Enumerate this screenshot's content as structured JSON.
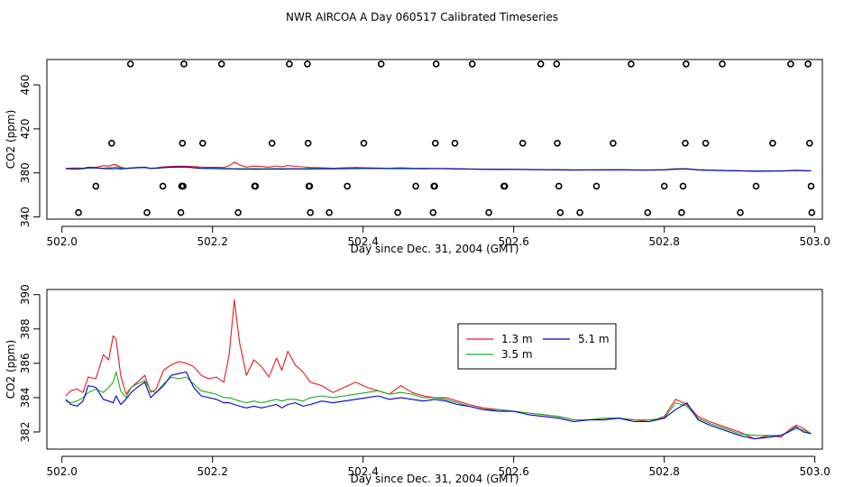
{
  "title": "NWR AIRCOA A  Day 060517  Calibrated Timeseries",
  "chart_data": [
    {
      "type": "scatter",
      "ylabel": "CO2 (ppm)",
      "xlabel": "Day since Dec. 31, 2004 (GMT)",
      "xlim": [
        501.98,
        503.01
      ],
      "ylim": [
        338,
        483
      ],
      "xticks": [
        502.0,
        502.2,
        502.4,
        502.6,
        502.8,
        503.0
      ],
      "xtick_labels": [
        "502.0",
        "502.2",
        "502.4",
        "502.6",
        "502.8",
        "503.0"
      ],
      "yticks": [
        340,
        380,
        420,
        460
      ],
      "ytick_labels": [
        "340",
        "380",
        "420",
        "460"
      ],
      "calibration_points": [
        {
          "x": 502.091,
          "y": 479
        },
        {
          "x": 502.162,
          "y": 479
        },
        {
          "x": 502.212,
          "y": 479
        },
        {
          "x": 502.302,
          "y": 479
        },
        {
          "x": 502.326,
          "y": 479
        },
        {
          "x": 502.424,
          "y": 479
        },
        {
          "x": 502.497,
          "y": 479
        },
        {
          "x": 502.545,
          "y": 479
        },
        {
          "x": 502.636,
          "y": 479
        },
        {
          "x": 502.657,
          "y": 479
        },
        {
          "x": 502.756,
          "y": 479
        },
        {
          "x": 502.829,
          "y": 479
        },
        {
          "x": 502.877,
          "y": 479
        },
        {
          "x": 502.968,
          "y": 479
        },
        {
          "x": 502.991,
          "y": 479
        },
        {
          "x": 502.066,
          "y": 407
        },
        {
          "x": 502.16,
          "y": 407
        },
        {
          "x": 502.187,
          "y": 407
        },
        {
          "x": 502.279,
          "y": 407
        },
        {
          "x": 502.327,
          "y": 407
        },
        {
          "x": 502.401,
          "y": 407
        },
        {
          "x": 502.496,
          "y": 407
        },
        {
          "x": 502.522,
          "y": 407
        },
        {
          "x": 502.612,
          "y": 407
        },
        {
          "x": 502.658,
          "y": 407
        },
        {
          "x": 502.732,
          "y": 407
        },
        {
          "x": 502.828,
          "y": 407
        },
        {
          "x": 502.855,
          "y": 407
        },
        {
          "x": 502.944,
          "y": 407
        },
        {
          "x": 502.993,
          "y": 407
        },
        {
          "x": 502.045,
          "y": 368
        },
        {
          "x": 502.134,
          "y": 368
        },
        {
          "x": 502.159,
          "y": 368
        },
        {
          "x": 502.161,
          "y": 368
        },
        {
          "x": 502.256,
          "y": 368
        },
        {
          "x": 502.257,
          "y": 368
        },
        {
          "x": 502.328,
          "y": 368
        },
        {
          "x": 502.329,
          "y": 368
        },
        {
          "x": 502.379,
          "y": 368
        },
        {
          "x": 502.47,
          "y": 368
        },
        {
          "x": 502.494,
          "y": 368
        },
        {
          "x": 502.495,
          "y": 368
        },
        {
          "x": 502.587,
          "y": 368
        },
        {
          "x": 502.588,
          "y": 368
        },
        {
          "x": 502.66,
          "y": 368
        },
        {
          "x": 502.71,
          "y": 368
        },
        {
          "x": 502.8,
          "y": 368
        },
        {
          "x": 502.825,
          "y": 368
        },
        {
          "x": 502.922,
          "y": 368
        },
        {
          "x": 502.995,
          "y": 368
        },
        {
          "x": 502.022,
          "y": 344
        },
        {
          "x": 502.113,
          "y": 344
        },
        {
          "x": 502.158,
          "y": 344
        },
        {
          "x": 502.234,
          "y": 344
        },
        {
          "x": 502.33,
          "y": 344
        },
        {
          "x": 502.355,
          "y": 344
        },
        {
          "x": 502.446,
          "y": 344
        },
        {
          "x": 502.493,
          "y": 344
        },
        {
          "x": 502.567,
          "y": 344
        },
        {
          "x": 502.662,
          "y": 344
        },
        {
          "x": 502.688,
          "y": 344
        },
        {
          "x": 502.778,
          "y": 344
        },
        {
          "x": 502.823,
          "y": 344
        },
        {
          "x": 502.901,
          "y": 344
        },
        {
          "x": 502.996,
          "y": 344
        }
      ]
    },
    {
      "type": "line",
      "ylabel": "CO2 (ppm)",
      "xlabel": "Day since Dec. 31, 2004 (GMT)",
      "xlim": [
        501.98,
        503.01
      ],
      "ylim": [
        381.0,
        390.3
      ],
      "xticks": [
        502.0,
        502.2,
        502.4,
        502.6,
        502.8,
        503.0
      ],
      "xtick_labels": [
        "502.0",
        "502.2",
        "502.4",
        "502.6",
        "502.8",
        "503.0"
      ],
      "yticks": [
        382,
        384,
        386,
        388,
        390
      ],
      "ytick_labels": [
        "382",
        "384",
        "386",
        "388",
        "390"
      ],
      "legend": {
        "placement": "upper-middle",
        "entries": [
          "1.3 m",
          "5.1 m",
          "3.5 m"
        ]
      },
      "x": [
        502.005,
        502.012,
        502.02,
        502.028,
        502.035,
        502.045,
        502.055,
        502.062,
        502.068,
        502.072,
        502.078,
        502.085,
        502.092,
        502.1,
        502.11,
        502.118,
        502.125,
        502.135,
        502.145,
        502.155,
        502.165,
        502.175,
        502.185,
        502.195,
        502.205,
        502.215,
        502.222,
        502.229,
        502.236,
        502.245,
        502.255,
        502.265,
        502.275,
        502.285,
        502.292,
        502.3,
        502.31,
        502.32,
        502.33,
        502.345,
        502.36,
        502.375,
        502.39,
        502.405,
        502.42,
        502.435,
        502.45,
        502.465,
        502.48,
        502.495,
        502.51,
        502.525,
        502.54,
        502.56,
        502.58,
        502.6,
        502.62,
        502.64,
        502.66,
        502.68,
        502.7,
        502.72,
        502.74,
        502.76,
        502.78,
        502.8,
        502.815,
        502.83,
        502.845,
        502.86,
        502.88,
        502.9,
        502.92,
        502.94,
        502.955,
        502.965,
        502.975,
        502.985,
        502.995
      ],
      "series": [
        {
          "name": "1.3 m",
          "color": "#e41a1c",
          "values": [
            384.1,
            384.4,
            384.5,
            384.3,
            385.2,
            385.1,
            386.5,
            386.2,
            387.6,
            387.4,
            385.3,
            384.2,
            384.6,
            384.9,
            385.3,
            384.3,
            384.5,
            385.6,
            385.9,
            386.1,
            386.0,
            385.8,
            385.3,
            385.1,
            385.2,
            384.9,
            386.5,
            389.7,
            387.2,
            385.3,
            386.2,
            385.8,
            385.2,
            386.3,
            385.6,
            386.7,
            385.9,
            385.5,
            384.9,
            384.7,
            384.3,
            384.6,
            384.9,
            384.6,
            384.4,
            384.2,
            384.7,
            384.3,
            384.1,
            384.0,
            384.0,
            383.8,
            383.6,
            383.4,
            383.3,
            383.2,
            383.1,
            383.0,
            382.9,
            382.7,
            382.7,
            382.8,
            382.8,
            382.7,
            382.6,
            382.9,
            383.9,
            383.6,
            382.9,
            382.6,
            382.3,
            382.0,
            381.6,
            381.8,
            381.7,
            382.1,
            382.4,
            382.2,
            381.9
          ]
        },
        {
          "name": "3.5 m",
          "color": "#1faa1f",
          "values": [
            383.8,
            383.7,
            383.8,
            384.0,
            384.3,
            384.5,
            384.3,
            384.6,
            384.9,
            385.5,
            384.4,
            384.0,
            384.6,
            384.8,
            385.0,
            384.4,
            384.3,
            384.8,
            385.2,
            385.1,
            385.2,
            384.8,
            384.4,
            384.3,
            384.2,
            384.0,
            384.0,
            383.9,
            383.8,
            383.7,
            383.8,
            383.7,
            383.8,
            383.9,
            383.8,
            383.9,
            383.9,
            383.8,
            384.0,
            384.1,
            384.0,
            384.1,
            384.2,
            384.3,
            384.4,
            384.2,
            384.3,
            384.2,
            384.0,
            384.0,
            383.9,
            383.7,
            383.5,
            383.3,
            383.3,
            383.2,
            383.1,
            383.0,
            382.9,
            382.7,
            382.7,
            382.8,
            382.8,
            382.7,
            382.7,
            382.8,
            383.7,
            383.5,
            382.8,
            382.5,
            382.2,
            381.9,
            381.8,
            381.8,
            381.8,
            382.0,
            382.2,
            382.1,
            381.9
          ]
        },
        {
          "name": "5.1 m",
          "color": "#0000cc",
          "values": [
            383.9,
            383.6,
            383.5,
            383.8,
            384.7,
            384.6,
            383.9,
            383.8,
            383.7,
            384.1,
            383.6,
            383.9,
            384.3,
            384.6,
            384.9,
            384.0,
            384.3,
            384.7,
            385.3,
            385.4,
            385.5,
            384.6,
            384.1,
            384.0,
            383.9,
            383.7,
            383.7,
            383.6,
            383.5,
            383.4,
            383.5,
            383.4,
            383.5,
            383.6,
            383.4,
            383.6,
            383.7,
            383.5,
            383.6,
            383.8,
            383.7,
            383.8,
            383.9,
            384.0,
            384.1,
            383.9,
            384.0,
            383.9,
            383.8,
            383.9,
            383.8,
            383.6,
            383.5,
            383.3,
            383.2,
            383.2,
            383.0,
            382.9,
            382.8,
            382.6,
            382.7,
            382.7,
            382.8,
            382.6,
            382.6,
            382.8,
            383.3,
            383.7,
            382.7,
            382.4,
            382.1,
            381.8,
            381.6,
            381.7,
            381.8,
            382.0,
            382.3,
            382.0,
            381.9
          ]
        }
      ]
    }
  ]
}
